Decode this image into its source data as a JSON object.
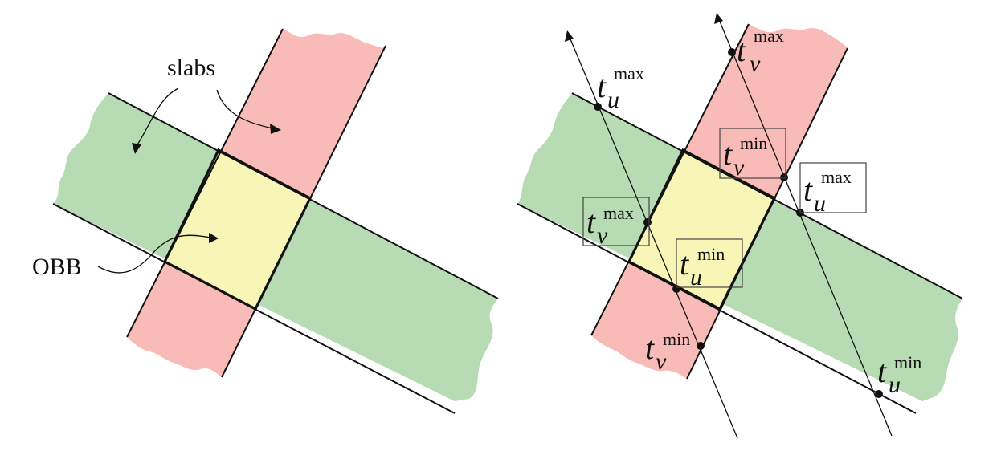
{
  "colors": {
    "slab_u": "#b7dbb2",
    "slab_v": "#f8bbb7",
    "obb": "#f7f6b6",
    "ink": "#111111"
  },
  "left_panel": {
    "slabs_label": "slabs",
    "obb_label": "OBB"
  },
  "right_panel": {
    "labels": [
      {
        "id": "tv-max-top",
        "base": "t",
        "sub": "v",
        "sup": "max",
        "boxed": false
      },
      {
        "id": "tu-max-left",
        "base": "t",
        "sub": "u",
        "sup": "max",
        "boxed": false
      },
      {
        "id": "tv-min-upper",
        "base": "t",
        "sub": "v",
        "sup": "min",
        "boxed": true
      },
      {
        "id": "tu-max-right",
        "base": "t",
        "sub": "u",
        "sup": "max",
        "boxed": true
      },
      {
        "id": "tv-max-mid",
        "base": "t",
        "sub": "v",
        "sup": "max",
        "boxed": true
      },
      {
        "id": "tu-min-mid",
        "base": "t",
        "sub": "u",
        "sup": "min",
        "boxed": true
      },
      {
        "id": "tv-min-bottom",
        "base": "t",
        "sub": "v",
        "sup": "min",
        "boxed": false
      },
      {
        "id": "tu-min-bottom",
        "base": "t",
        "sub": "u",
        "sup": "min",
        "boxed": false
      }
    ]
  }
}
